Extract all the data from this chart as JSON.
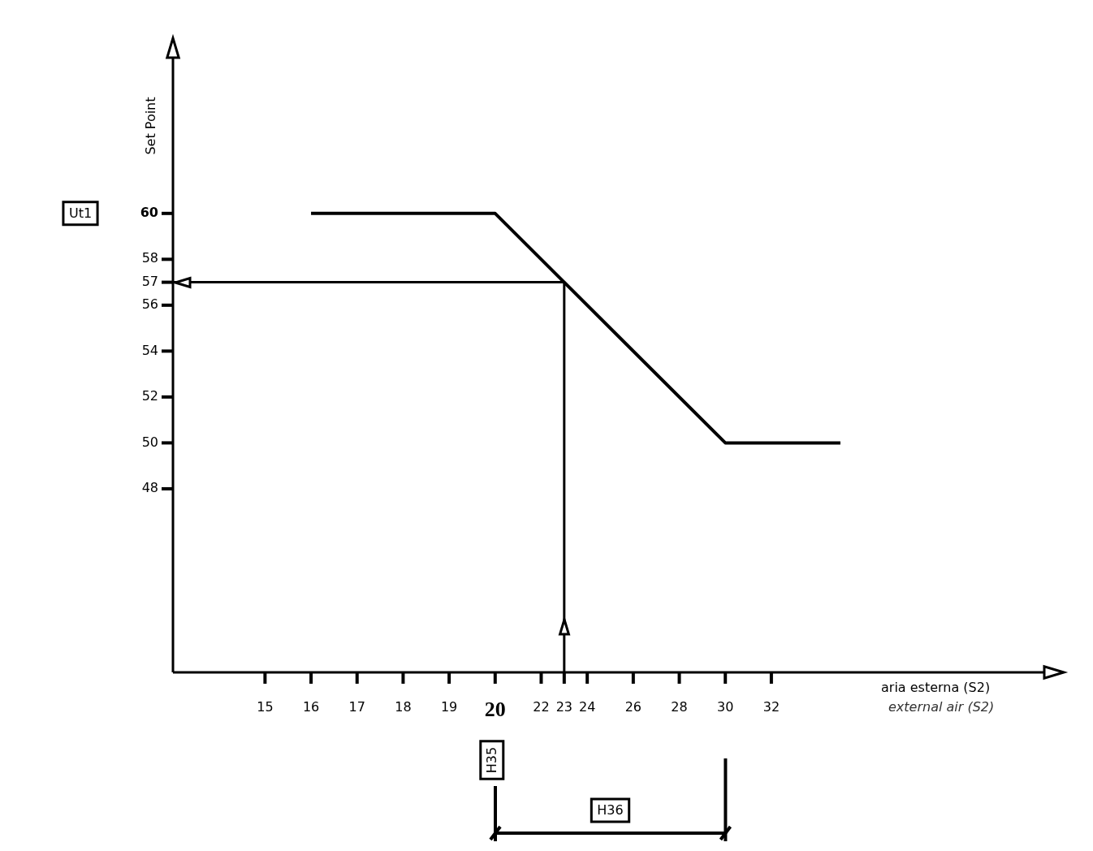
{
  "chart_data": {
    "type": "line",
    "ylabel": "Set Point",
    "xlabel": "aria esterna (S2)",
    "categories": [
      null,
      null,
      null,
      null,
      "15",
      null,
      "16",
      null,
      "17",
      null,
      "18",
      null,
      "19",
      null,
      "20",
      null,
      "22",
      "23",
      "24",
      null,
      "26",
      null,
      "28",
      null,
      "30",
      null,
      "32",
      null,
      null,
      null,
      null,
      null,
      null,
      null,
      null,
      null,
      null,
      null,
      null
    ],
    "series": [
      {
        "color": "#000000",
        "values": [
          null,
          null,
          null,
          null,
          null,
          null,
          60,
          null,
          null,
          null,
          null,
          null,
          null,
          null,
          60,
          null,
          null,
          null,
          null,
          null,
          null,
          null,
          null,
          null,
          50,
          null,
          null,
          null,
          null,
          50,
          null,
          null,
          null,
          null,
          null,
          null,
          null,
          null,
          null
        ]
      }
    ],
    "ylim": [
      40,
      67
    ],
    "yticks": [
      48,
      50,
      52,
      54,
      56,
      57,
      58,
      60
    ],
    "marker": "none",
    "line_style": "solid",
    "ref_lines": [
      {
        "axis": "x",
        "value": "23"
      },
      {
        "axis": "y",
        "value": 57
      }
    ],
    "annotations": [
      "Ut1",
      {
        "text": "H35",
        "x": "20"
      },
      "H36",
      "external air (S2)"
    ]
  }
}
